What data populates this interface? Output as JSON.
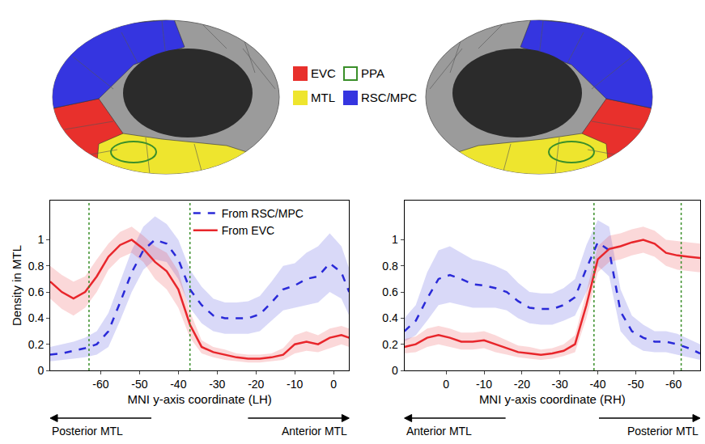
{
  "region_legend": [
    {
      "name": "EVC",
      "color": "#e8302c",
      "style": "fill"
    },
    {
      "name": "PPA",
      "color": "#3a8f2a",
      "style": "outline"
    },
    {
      "name": "MTL",
      "color": "#eee52e",
      "style": "fill"
    },
    {
      "name": "RSC/MPC",
      "color": "#3535e0",
      "style": "fill"
    }
  ],
  "chart_data": [
    {
      "type": "line",
      "x_label": "MNI y-axis coordinate (LH)",
      "y_label": "Density in MTL",
      "xlim": [
        -73,
        4
      ],
      "xticks": [
        -60,
        -50,
        -40,
        -30,
        -20,
        -10,
        0
      ],
      "ylim": [
        0,
        1.3
      ],
      "yticks": [
        0,
        0.2,
        0.4,
        0.6,
        0.8,
        1
      ],
      "grid": false,
      "legend": "top",
      "x": [
        -73,
        -70,
        -67,
        -64,
        -61,
        -58,
        -55,
        -52,
        -49,
        -46,
        -43,
        -40,
        -37,
        -34,
        -31,
        -28,
        -25,
        -22,
        -19,
        -16,
        -13,
        -10,
        -7,
        -4,
        -1,
        2,
        4
      ],
      "series": [
        {
          "name": "From RSC/MPC",
          "color": "#2a2ad8",
          "line_style": "dash",
          "values": [
            0.12,
            0.13,
            0.15,
            0.17,
            0.2,
            0.3,
            0.52,
            0.75,
            0.92,
            1.0,
            0.97,
            0.85,
            0.62,
            0.5,
            0.42,
            0.4,
            0.4,
            0.4,
            0.43,
            0.52,
            0.62,
            0.65,
            0.7,
            0.72,
            0.82,
            0.75,
            0.6
          ],
          "band_lower": [
            0.07,
            0.08,
            0.09,
            0.1,
            0.12,
            0.18,
            0.38,
            0.6,
            0.77,
            0.85,
            0.83,
            0.7,
            0.48,
            0.36,
            0.3,
            0.28,
            0.28,
            0.28,
            0.3,
            0.38,
            0.46,
            0.48,
            0.5,
            0.52,
            0.6,
            0.55,
            0.42
          ],
          "band_upper": [
            0.18,
            0.2,
            0.22,
            0.25,
            0.3,
            0.44,
            0.68,
            0.92,
            1.1,
            1.18,
            1.12,
            1.0,
            0.77,
            0.64,
            0.55,
            0.52,
            0.52,
            0.53,
            0.57,
            0.68,
            0.8,
            0.82,
            0.9,
            0.95,
            1.05,
            0.95,
            0.78
          ]
        },
        {
          "name": "From EVC",
          "color": "#e8262b",
          "line_style": "solid",
          "values": [
            0.68,
            0.6,
            0.55,
            0.6,
            0.72,
            0.87,
            0.96,
            1.0,
            0.93,
            0.83,
            0.76,
            0.62,
            0.35,
            0.18,
            0.14,
            0.12,
            0.1,
            0.09,
            0.09,
            0.1,
            0.12,
            0.2,
            0.22,
            0.2,
            0.25,
            0.27,
            0.25
          ],
          "band_lower": [
            0.55,
            0.47,
            0.42,
            0.48,
            0.6,
            0.77,
            0.86,
            0.9,
            0.83,
            0.7,
            0.62,
            0.48,
            0.25,
            0.13,
            0.1,
            0.08,
            0.07,
            0.06,
            0.06,
            0.07,
            0.08,
            0.13,
            0.15,
            0.14,
            0.17,
            0.2,
            0.18
          ],
          "band_upper": [
            0.8,
            0.73,
            0.68,
            0.72,
            0.85,
            0.97,
            1.06,
            1.1,
            1.03,
            0.95,
            0.9,
            0.76,
            0.45,
            0.23,
            0.18,
            0.16,
            0.13,
            0.12,
            0.12,
            0.13,
            0.17,
            0.27,
            0.3,
            0.27,
            0.32,
            0.34,
            0.32
          ]
        }
      ],
      "ppa_bounds": {
        "values": [
          -63,
          -37
        ],
        "color": "#3a8f2a"
      },
      "arrows": [
        {
          "text": "Posterior MTL",
          "direction": "left"
        },
        {
          "text": "Anterior MTL",
          "direction": "right"
        }
      ]
    },
    {
      "type": "line",
      "x_label": "MNI y-axis coordinate (RH)",
      "xlim": [
        11,
        -67
      ],
      "xticks": [
        0,
        -10,
        -20,
        -30,
        -40,
        -50,
        -60
      ],
      "ylim": [
        0,
        1.3
      ],
      "yticks": [
        0,
        0.2,
        0.4,
        0.6,
        0.8,
        1
      ],
      "grid": false,
      "x": [
        11,
        8,
        5,
        2,
        -1,
        -4,
        -7,
        -10,
        -13,
        -16,
        -19,
        -22,
        -25,
        -28,
        -31,
        -34,
        -37,
        -40,
        -43,
        -46,
        -49,
        -52,
        -55,
        -58,
        -61,
        -64,
        -67
      ],
      "series": [
        {
          "name": "From RSC/MPC",
          "color": "#2a2ad8",
          "line_style": "dash",
          "values": [
            0.3,
            0.38,
            0.55,
            0.7,
            0.73,
            0.7,
            0.66,
            0.65,
            0.63,
            0.6,
            0.53,
            0.48,
            0.47,
            0.47,
            0.5,
            0.56,
            0.78,
            0.98,
            0.92,
            0.45,
            0.3,
            0.25,
            0.22,
            0.22,
            0.2,
            0.17,
            0.13
          ],
          "band_lower": [
            0.22,
            0.27,
            0.38,
            0.5,
            0.52,
            0.5,
            0.48,
            0.48,
            0.48,
            0.46,
            0.4,
            0.36,
            0.35,
            0.35,
            0.38,
            0.42,
            0.6,
            0.8,
            0.72,
            0.3,
            0.2,
            0.15,
            0.14,
            0.14,
            0.12,
            0.1,
            0.08
          ],
          "band_upper": [
            0.4,
            0.5,
            0.75,
            0.92,
            0.95,
            0.9,
            0.85,
            0.83,
            0.8,
            0.76,
            0.67,
            0.6,
            0.59,
            0.59,
            0.63,
            0.7,
            0.96,
            1.15,
            1.1,
            0.62,
            0.42,
            0.35,
            0.3,
            0.3,
            0.28,
            0.24,
            0.2
          ]
        },
        {
          "name": "From EVC",
          "color": "#e8262b",
          "line_style": "solid",
          "values": [
            0.18,
            0.2,
            0.25,
            0.27,
            0.25,
            0.22,
            0.22,
            0.23,
            0.2,
            0.17,
            0.14,
            0.13,
            0.12,
            0.13,
            0.15,
            0.2,
            0.5,
            0.85,
            0.93,
            0.95,
            0.98,
            1.0,
            0.97,
            0.9,
            0.88,
            0.87,
            0.86
          ],
          "band_lower": [
            0.13,
            0.14,
            0.18,
            0.2,
            0.18,
            0.16,
            0.16,
            0.17,
            0.14,
            0.12,
            0.1,
            0.09,
            0.08,
            0.09,
            0.11,
            0.14,
            0.4,
            0.75,
            0.83,
            0.85,
            0.88,
            0.9,
            0.87,
            0.8,
            0.77,
            0.76,
            0.75
          ],
          "band_upper": [
            0.24,
            0.26,
            0.32,
            0.34,
            0.32,
            0.29,
            0.29,
            0.3,
            0.27,
            0.23,
            0.19,
            0.18,
            0.16,
            0.17,
            0.2,
            0.27,
            0.6,
            0.95,
            1.03,
            1.05,
            1.08,
            1.1,
            1.07,
            1.0,
            0.99,
            0.98,
            0.97
          ]
        }
      ],
      "ppa_bounds": {
        "values": [
          -39,
          -62
        ],
        "color": "#3a8f2a"
      },
      "arrows": [
        {
          "text": "Anterior MTL",
          "direction": "left"
        },
        {
          "text": "Posterior MTL",
          "direction": "right"
        }
      ]
    }
  ]
}
